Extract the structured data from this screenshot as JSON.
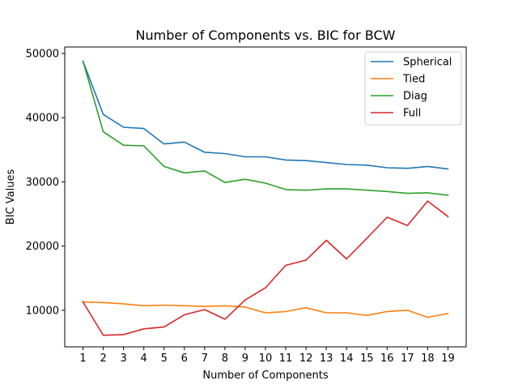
{
  "chart_data": {
    "type": "line",
    "title": "Number of Components vs. BIC for BCW",
    "xlabel": "Number of Components",
    "ylabel": "BIC Values",
    "x": [
      1,
      2,
      3,
      4,
      5,
      6,
      7,
      8,
      9,
      10,
      11,
      12,
      13,
      14,
      15,
      16,
      17,
      18,
      19
    ],
    "xticks": [
      "1",
      "2",
      "3",
      "4",
      "5",
      "6",
      "7",
      "8",
      "9",
      "10",
      "11",
      "12",
      "13",
      "14",
      "15",
      "16",
      "17",
      "18",
      "19"
    ],
    "yticks": [
      "10000",
      "20000",
      "30000",
      "40000",
      "50000"
    ],
    "ytick_values": [
      10000,
      20000,
      30000,
      40000,
      50000
    ],
    "xlim": [
      0.1,
      19.9
    ],
    "ylim": [
      4300,
      51000
    ],
    "grid": false,
    "legend_position": "top-right",
    "series": [
      {
        "name": "Spherical",
        "color": "#1f77b4",
        "values": [
          48800,
          40500,
          38500,
          38300,
          35900,
          36200,
          34600,
          34400,
          33900,
          33900,
          33400,
          33300,
          33000,
          32700,
          32600,
          32200,
          32100,
          32400,
          32000
        ]
      },
      {
        "name": "Tied",
        "color": "#ff7f0e",
        "values": [
          11300,
          11200,
          11000,
          10700,
          10800,
          10700,
          10600,
          10700,
          10500,
          9600,
          9800,
          10400,
          9600,
          9600,
          9200,
          9800,
          10000,
          8900,
          9500
        ]
      },
      {
        "name": "Diag",
        "color": "#2ca02c",
        "values": [
          48800,
          37800,
          35700,
          35600,
          32400,
          31400,
          31700,
          29900,
          30400,
          29800,
          28800,
          28700,
          28900,
          28900,
          28700,
          28500,
          28200,
          28300,
          27900
        ]
      },
      {
        "name": "Full",
        "color": "#d62728",
        "values": [
          11300,
          6100,
          6200,
          7100,
          7400,
          9300,
          10100,
          8600,
          11600,
          13500,
          17000,
          17800,
          20900,
          18000,
          21200,
          24500,
          23200,
          27000,
          24600
        ]
      }
    ]
  }
}
